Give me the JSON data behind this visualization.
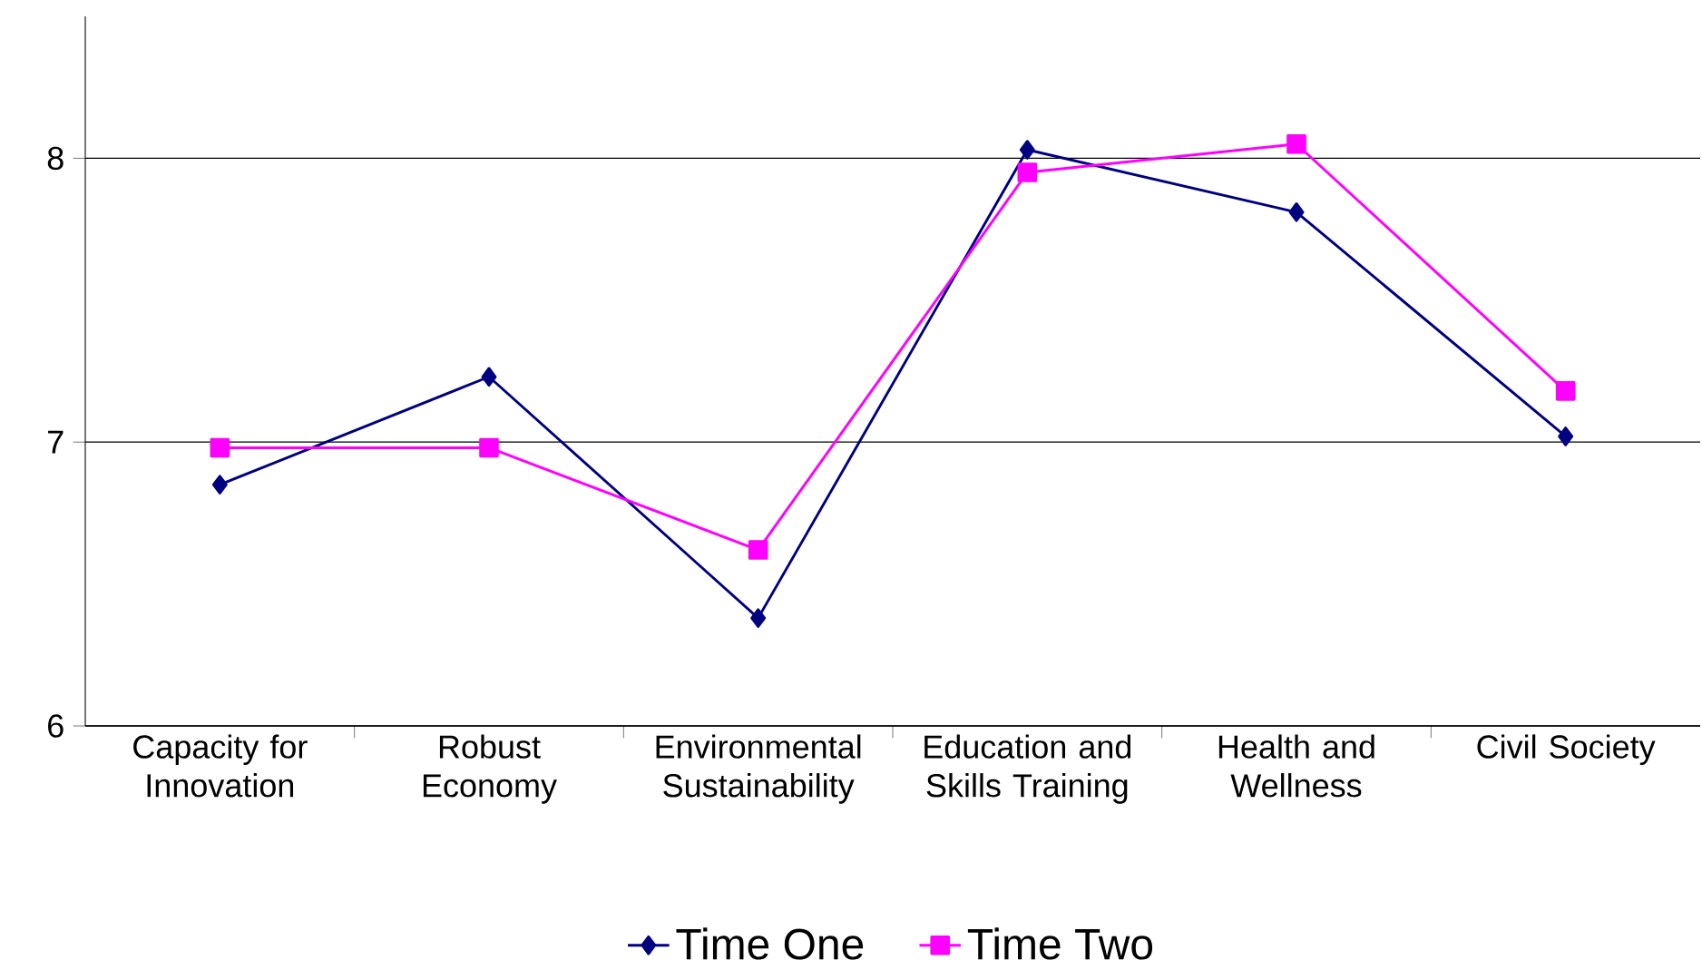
{
  "chart_data": {
    "type": "line",
    "categories": [
      "Capacity for Innovation",
      "Robust Economy",
      "Environmental Sustainability",
      "Education and Skills Training",
      "Health and Wellness",
      "Civil Society"
    ],
    "series": [
      {
        "name": "Time One",
        "color": "#000080",
        "marker": "diamond",
        "values": [
          6.85,
          7.23,
          6.38,
          8.03,
          7.81,
          7.02
        ]
      },
      {
        "name": "Time Two",
        "color": "#ff00ff",
        "marker": "square",
        "values": [
          6.98,
          6.98,
          6.62,
          7.95,
          8.05,
          7.18
        ]
      }
    ],
    "ylim": [
      6,
      8.5
    ],
    "yticks": [
      6,
      7,
      8
    ],
    "grid": "y",
    "legend": "bottom",
    "line_style": "solid"
  }
}
